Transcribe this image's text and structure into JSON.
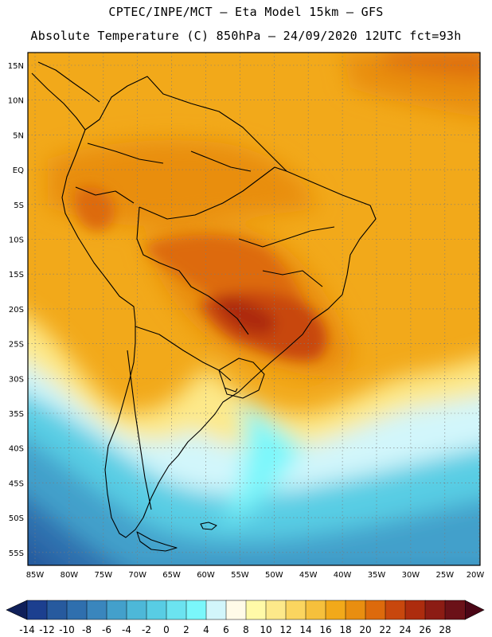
{
  "header": {
    "line1": "CPTEC/INPE/MCT –  Eta Model 15km – GFS",
    "line2": "Absolute Temperature (C) 850hPa – 24/09/2020 12UTC fct=93h"
  },
  "axes": {
    "lat_labels": [
      "15N",
      "10N",
      "5N",
      "EQ",
      "5S",
      "10S",
      "15S",
      "20S",
      "25S",
      "30S",
      "35S",
      "40S",
      "45S",
      "50S",
      "55S"
    ],
    "lon_labels": [
      "85W",
      "80W",
      "75W",
      "70W",
      "65W",
      "60W",
      "55W",
      "50W",
      "45W",
      "40W",
      "35W",
      "30W",
      "25W",
      "20W"
    ]
  },
  "colorbar": {
    "labels": [
      "-14",
      "-12",
      "-10",
      "-8",
      "-6",
      "-4",
      "-2",
      "0",
      "2",
      "4",
      "6",
      "8",
      "10",
      "12",
      "14",
      "16",
      "18",
      "20",
      "22",
      "24",
      "26",
      "28"
    ],
    "colors": [
      "#1c3f8f",
      "#275a9e",
      "#2f6fae",
      "#3a86bd",
      "#43a0cb",
      "#4db8d8",
      "#58cde4",
      "#6be3f0",
      "#7af7fb",
      "#d2f6fb",
      "#fffbe8",
      "#fffaa8",
      "#fde98a",
      "#fbd55f",
      "#f6c03c",
      "#f2a91a",
      "#e98e10",
      "#dd6a0c",
      "#c8470d",
      "#ad2c0e",
      "#8c1c14",
      "#6b1118"
    ],
    "arrow_left_color": "#10205a",
    "arrow_right_color": "#4b0616"
  }
}
